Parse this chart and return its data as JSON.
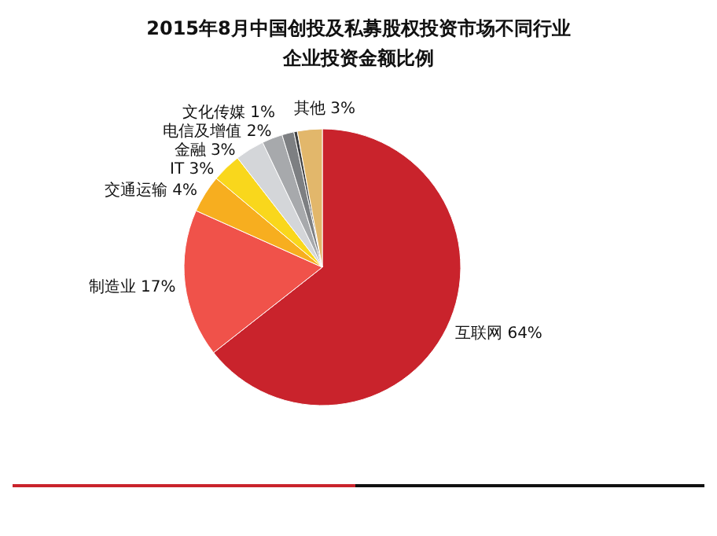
{
  "chart_data": {
    "type": "pie",
    "title": "2015年8月中国创投及私募股权投资市场不同行业企业投资金额比例",
    "categories": [
      "互联网",
      "制造业",
      "交通运输",
      "IT",
      "金融",
      "电信及增值",
      "文化传媒",
      null,
      "其他"
    ],
    "values": [
      64.4,
      17.3,
      4.4,
      3.4,
      3.4,
      2.4,
      1.4,
      0.4,
      2.9
    ],
    "value_labels": [
      "64%",
      "17%",
      "4%",
      "3%",
      "3%",
      "2%",
      "1%",
      null,
      "3%"
    ],
    "colors": [
      "#c9232c",
      "#f0524a",
      "#f7ae1f",
      "#f9d71c",
      "#d4d6d9",
      "#a7a9ac",
      "#7d7f82",
      "#3f4042",
      "#e2b76b"
    ]
  }
}
